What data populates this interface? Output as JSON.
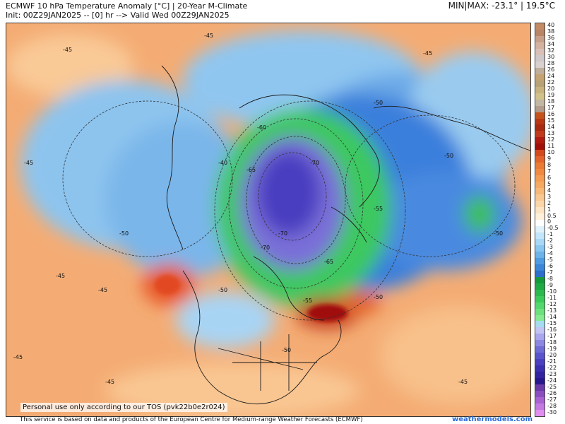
{
  "header": {
    "title_line1": "ECMWF 10 hPa Temperature Anomaly [°C] | 20-Year M-Climate",
    "title_line2": "Init: 00Z29JAN2025 -- [0] hr --> Valid Wed 00Z29JAN2025",
    "minmax": "MIN|MAX: -23.1° | 19.5°C"
  },
  "map": {
    "tos_note": "Personal use only according to our TOS (pvk22b0e2r024)",
    "contour_labels": [
      "-40",
      "-45",
      "-50",
      "-55",
      "-60",
      "-65",
      "-70"
    ]
  },
  "colorbar": {
    "labels": [
      "40",
      "38",
      "36",
      "34",
      "32",
      "30",
      "28",
      "26",
      "24",
      "22",
      "20",
      "19",
      "18",
      "17",
      "16",
      "15",
      "14",
      "13",
      "12",
      "11",
      "10",
      "9",
      "8",
      "7",
      "6",
      "5",
      "4",
      "3",
      "2",
      "1",
      "0.5",
      "0",
      "-0.5",
      "-1",
      "-2",
      "-3",
      "-4",
      "-5",
      "-6",
      "-7",
      "-8",
      "-9",
      "-10",
      "-11",
      "-12",
      "-13",
      "-14",
      "-15",
      "-16",
      "-17",
      "-18",
      "-19",
      "-20",
      "-21",
      "-22",
      "-23",
      "-24",
      "-25",
      "-26",
      "-27",
      "-28",
      "-30"
    ],
    "colors": [
      "#c48a63",
      "#b98567",
      "#c7a08c",
      "#d4b2a0",
      "#d9c0b6",
      "#cfc8c8",
      "#d9d0d0",
      "#bfae9a",
      "#c6a373",
      "#b9a176",
      "#c8b37f",
      "#d2c18a",
      "#c2b7a3",
      "#b29c8c",
      "#c4541c",
      "#b83814",
      "#a82a10",
      "#c23a1c",
      "#b01c10",
      "#a01008",
      "#d44a1c",
      "#e2642a",
      "#ea7a34",
      "#f08a40",
      "#f39c52",
      "#f5aa62",
      "#f7b978",
      "#f9c791",
      "#fbd6a8",
      "#fde4c2",
      "#fff0dc",
      "#ffffff",
      "#dff1fb",
      "#c4e6fa",
      "#a9d8f6",
      "#8ac7f0",
      "#6cb3ea",
      "#4f9ce2",
      "#3b86d8",
      "#2c6fcd",
      "#149a3c",
      "#1eaa44",
      "#2cba50",
      "#3cca5c",
      "#52d86c",
      "#6ce27e",
      "#86ea92",
      "#a6dcf0",
      "#c2c4f4",
      "#a8a6ec",
      "#8c88e2",
      "#706cd6",
      "#5a54cc",
      "#4a40c0",
      "#3c30b0",
      "#3224a0",
      "#281890",
      "#6a3aa8",
      "#8a4ec0",
      "#a862d2",
      "#c478e2",
      "#e08ff0"
    ]
  },
  "footer": {
    "source_note": "This service is based on data and products of the European Centre for Medium-range Weather Forecasts (ECMWF)",
    "brand": "weathermodels.com"
  }
}
